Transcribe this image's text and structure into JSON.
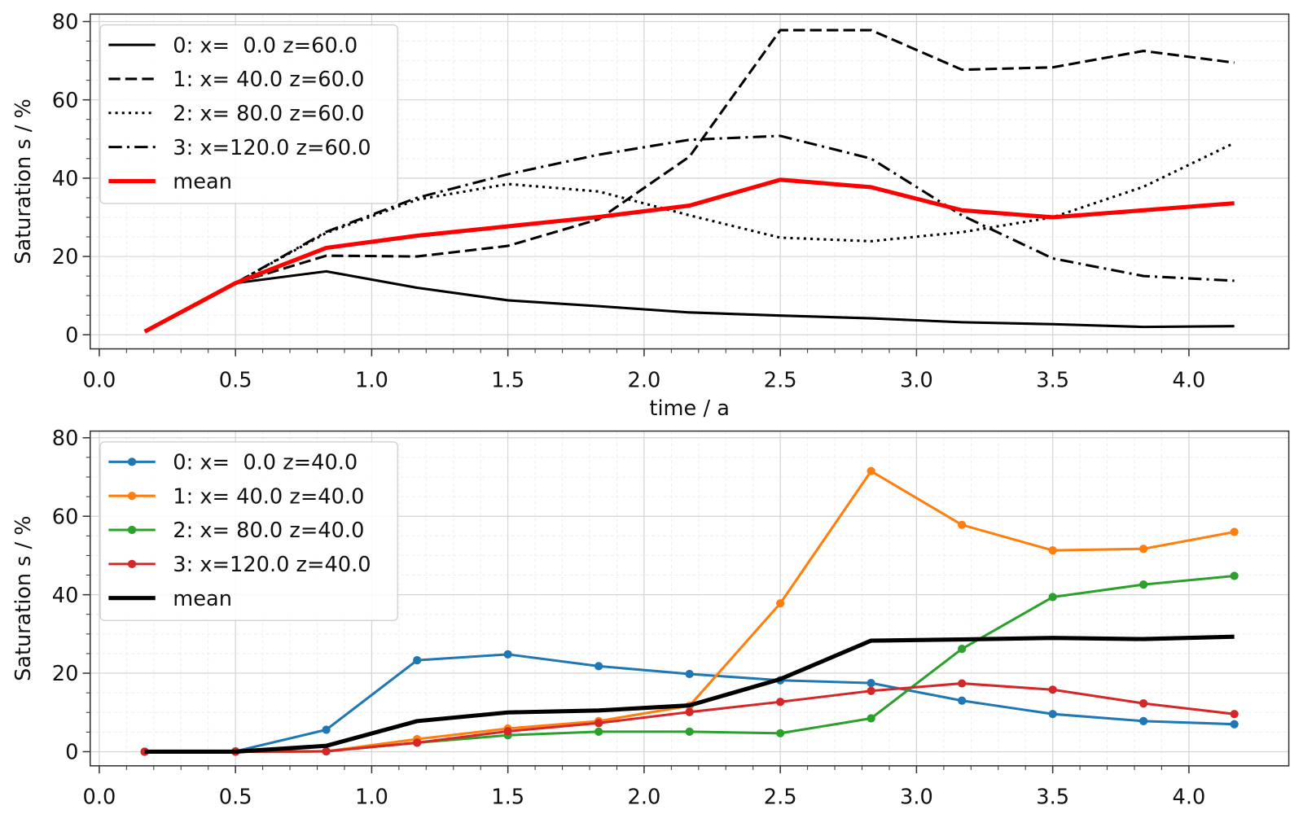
{
  "chart_data": [
    {
      "type": "line",
      "xlabel": "time / a",
      "ylabel": "Saturation s / %",
      "x": [
        0.1667,
        0.5,
        0.8333,
        1.1667,
        1.5,
        1.8333,
        2.1667,
        2.5,
        2.8333,
        3.1667,
        3.5,
        3.8333,
        4.1667
      ],
      "xlim": [
        -0.0333,
        4.3667
      ],
      "ylim": [
        -3.6,
        81.9
      ],
      "xticks": [
        {
          "value": 0,
          "label": "0.0"
        },
        0.5,
        {
          "value": 1,
          "label": "1.0"
        },
        1.5,
        {
          "value": 2,
          "label": "2.0"
        },
        2.5,
        {
          "value": 3,
          "label": "3.0"
        },
        3.5,
        {
          "value": 4,
          "label": "4.0"
        }
      ],
      "yticks": [
        0,
        20,
        40,
        60,
        80
      ],
      "grid": true,
      "minor_grid": true,
      "legend": "upper left",
      "series": [
        {
          "name": "0: x=  0.0 z=60.0",
          "color": "#000000",
          "linestyle": "solid",
          "values": [
            null,
            13.2,
            16.2,
            12,
            8.8,
            7.3,
            5.7,
            4.9,
            4.2,
            3.2,
            2.7,
            2,
            2.2
          ]
        },
        {
          "name": "1: x= 40.0 z=60.0",
          "color": "#000000",
          "linestyle": "dashed",
          "values": [
            null,
            13.2,
            20.2,
            20,
            22.7,
            29.5,
            45.5,
            77.8,
            77.8,
            67.7,
            68.3,
            72.5,
            69.5
          ]
        },
        {
          "name": "2: x= 80.0 z=60.0",
          "color": "#000000",
          "linestyle": "dotted",
          "values": [
            null,
            13.2,
            26,
            34.5,
            38.5,
            36.6,
            30.5,
            24.8,
            23.9,
            26.2,
            30,
            37.8,
            49
          ]
        },
        {
          "name": "3: x=120.0 z=60.0",
          "color": "#000000",
          "linestyle": "dashdot",
          "values": [
            null,
            13.2,
            26.3,
            35,
            41,
            46,
            49.8,
            50.8,
            45,
            30.5,
            19.5,
            15,
            13.8
          ]
        },
        {
          "name": "mean",
          "color": "#ff0000",
          "linestyle": "solid",
          "linewidth": 5,
          "values": [
            0.8,
            13.2,
            22.2,
            25.3,
            27.7,
            30.1,
            33,
            39.6,
            37.7,
            31.8,
            30,
            31.8,
            33.6
          ]
        }
      ]
    },
    {
      "type": "line",
      "ylabel": "Saturation s / %",
      "x": [
        0.1667,
        0.5,
        0.8333,
        1.1667,
        1.5,
        1.8333,
        2.1667,
        2.5,
        2.8333,
        3.1667,
        3.5,
        3.8333,
        4.1667
      ],
      "xlim": [
        -0.0333,
        4.3667
      ],
      "ylim": [
        -3.6,
        81.7
      ],
      "xticks": [
        {
          "value": 0,
          "label": "0.0"
        },
        0.5,
        {
          "value": 1,
          "label": "1.0"
        },
        1.5,
        {
          "value": 2,
          "label": "2.0"
        },
        2.5,
        {
          "value": 3,
          "label": "3.0"
        },
        3.5,
        {
          "value": 4,
          "label": "4.0"
        }
      ],
      "yticks": [
        0,
        20,
        40,
        60,
        80
      ],
      "grid": true,
      "minor_grid": true,
      "legend": "upper left",
      "series": [
        {
          "name": "0: x=  0.0 z=40.0",
          "color": "#1f77b4",
          "linestyle": "solid",
          "marker": "o",
          "values": [
            0,
            0.1,
            5.6,
            23.3,
            24.8,
            21.8,
            19.8,
            18.2,
            17.5,
            13,
            9.6,
            7.8,
            7
          ]
        },
        {
          "name": "1: x= 40.0 z=40.0",
          "color": "#ff7f0e",
          "linestyle": "solid",
          "marker": "o",
          "values": [
            0,
            0,
            0.1,
            3.2,
            5.9,
            7.8,
            11.7,
            37.8,
            71.5,
            57.8,
            51.3,
            51.7,
            56
          ]
        },
        {
          "name": "2: x= 80.0 z=40.0",
          "color": "#2ca02c",
          "linestyle": "solid",
          "marker": "o",
          "values": [
            0,
            0,
            0.1,
            2.3,
            4.2,
            5.1,
            5.1,
            4.7,
            8.5,
            26.2,
            39.4,
            42.6,
            44.8
          ]
        },
        {
          "name": "3: x=120.0 z=40.0",
          "color": "#d62728",
          "linestyle": "solid",
          "marker": "o",
          "values": [
            0,
            0,
            0.1,
            2.3,
            5.2,
            7.3,
            10.1,
            12.7,
            15.5,
            17.4,
            15.8,
            12.3,
            9.6
          ]
        },
        {
          "name": "mean",
          "color": "#000000",
          "linestyle": "solid",
          "linewidth": 5,
          "values": [
            0,
            0,
            1.5,
            7.8,
            10,
            10.5,
            11.8,
            18.5,
            28.3,
            28.6,
            29,
            28.7,
            29.3
          ]
        }
      ]
    }
  ]
}
